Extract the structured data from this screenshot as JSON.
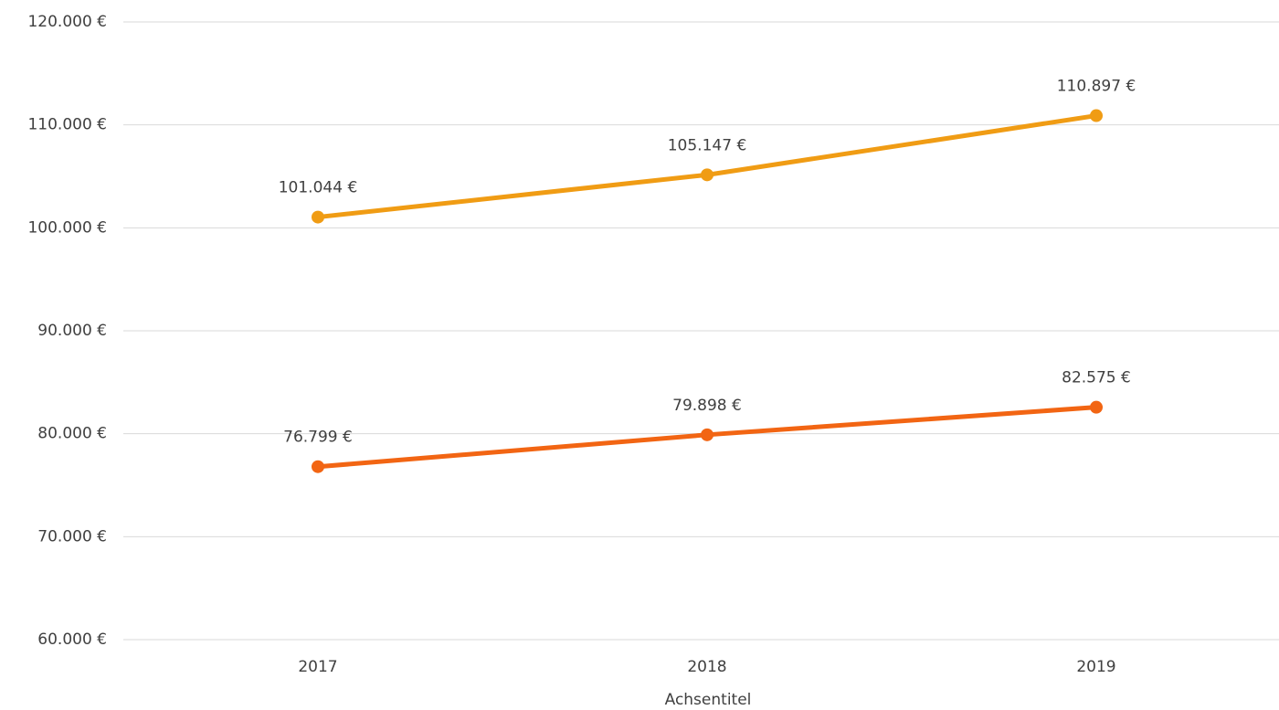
{
  "chart_data": {
    "type": "line",
    "x_label": "Achsentitel",
    "categories": [
      "2017",
      "2018",
      "2019"
    ],
    "series": [
      {
        "color": "#f09c14",
        "values": [
          101044,
          105147,
          110897
        ],
        "value_labels": [
          "101.044 €",
          "105.147 €",
          "110.897 €"
        ]
      },
      {
        "color": "#f26513",
        "values": [
          76799,
          79898,
          82575
        ],
        "value_labels": [
          "76.799 €",
          "79.898 €",
          "82.575 €"
        ]
      }
    ],
    "ylim": [
      60000,
      120000
    ],
    "yticks": [
      {
        "value": 60000,
        "label": "60.000 €"
      },
      {
        "value": 70000,
        "label": "70.000 €"
      },
      {
        "value": 80000,
        "label": "80.000 €"
      },
      {
        "value": 90000,
        "label": "90.000 €"
      },
      {
        "value": 100000,
        "label": "100.000 €"
      },
      {
        "value": 110000,
        "label": "110.000 €"
      },
      {
        "value": 120000,
        "label": "120.000 €"
      }
    ],
    "grid": true
  }
}
